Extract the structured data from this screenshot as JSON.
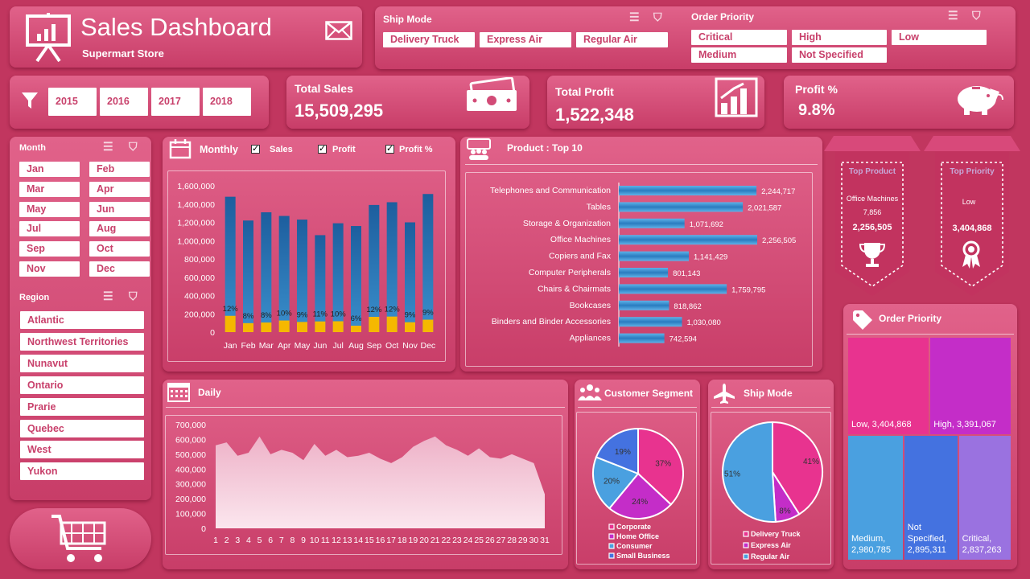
{
  "header": {
    "title": "Sales Dashboard",
    "subtitle": "Supermart Store"
  },
  "ship_mode_filter": {
    "title": "Ship Mode",
    "items": [
      "Delivery Truck",
      "Express Air",
      "Regular Air"
    ]
  },
  "order_priority_filter": {
    "title": "Order Priority",
    "items": [
      "Critical",
      "High",
      "Low",
      "Medium",
      "Not Specified"
    ]
  },
  "years": [
    "2015",
    "2016",
    "2017",
    "2018"
  ],
  "kpis": {
    "sales": {
      "title": "Total Sales",
      "value": "15,509,295"
    },
    "profit": {
      "title": "Total Profit",
      "value": "1,522,348"
    },
    "profit_pct": {
      "title": "Profit %",
      "value": "9.8%"
    }
  },
  "month_filter": {
    "title": "Month",
    "items": [
      "Jan",
      "Feb",
      "Mar",
      "Apr",
      "May",
      "Jun",
      "Jul",
      "Aug",
      "Sep",
      "Oct",
      "Nov",
      "Dec"
    ]
  },
  "region_filter": {
    "title": "Region",
    "items": [
      "Atlantic",
      "Northwest Territories",
      "Nunavut",
      "Ontario",
      "Prarie",
      "Quebec",
      "West",
      "Yukon"
    ]
  },
  "monthly": {
    "title": "Monthly",
    "checks": [
      "Sales",
      "Profit",
      "Profit %"
    ]
  },
  "top_product_title": "Product : Top 10",
  "ribbon_product": {
    "title": "Top Product",
    "name": "Office Machines",
    "sub": "7,856",
    "value": "2,256,505"
  },
  "ribbon_priority": {
    "title": "Top Priority",
    "name": "Low",
    "value": "3,404,868"
  },
  "daily_title": "Daily",
  "segment_title": "Customer Segment",
  "shipmode_title": "Ship Mode",
  "priority_title": "Order Priority",
  "colors": {
    "bar_top": "#3a8fcc",
    "bar_bottom": "#1d5e9e",
    "profit": "#f5b800",
    "pink": "#e8338f",
    "magenta": "#c42dc8",
    "blue": "#4aa0e0",
    "royal": "#4472e0",
    "violet": "#9a72e0"
  },
  "chart_data": [
    {
      "type": "bar",
      "name": "Monthly",
      "categories": [
        "Jan",
        "Feb",
        "Mar",
        "Apr",
        "May",
        "Jun",
        "Jul",
        "Aug",
        "Sep",
        "Oct",
        "Nov",
        "Dec"
      ],
      "series": [
        {
          "name": "Sales",
          "values": [
            1480000,
            1220000,
            1310000,
            1270000,
            1230000,
            1060000,
            1190000,
            1160000,
            1390000,
            1420000,
            1200000,
            1510000
          ]
        },
        {
          "name": "Profit",
          "values": [
            178000,
            98000,
            105000,
            127000,
            111000,
            117000,
            119000,
            70000,
            167000,
            170000,
            108000,
            136000
          ]
        }
      ],
      "labels": [
        "12%",
        "8%",
        "8%",
        "10%",
        "9%",
        "11%",
        "10%",
        "6%",
        "12%",
        "12%",
        "9%",
        "9%"
      ],
      "ylim": [
        0,
        1600000
      ],
      "yticks": [
        "0",
        "200,000",
        "400,000",
        "600,000",
        "800,000",
        "1,000,000",
        "1,200,000",
        "1,400,000",
        "1,600,000"
      ]
    },
    {
      "type": "bar",
      "orientation": "horizontal",
      "name": "Product : Top 10",
      "categories": [
        "Telephones and Communication",
        "Tables",
        "Storage & Organization",
        "Office Machines",
        "Copiers and Fax",
        "Computer Peripherals",
        "Chairs & Chairmats",
        "Bookcases",
        "Binders and Binder Accessories",
        "Appliances"
      ],
      "values": [
        2244717,
        2021587,
        1071692,
        2256505,
        1141429,
        801143,
        1759795,
        818862,
        1030080,
        742594
      ],
      "value_labels": [
        "2,244,717",
        "2,021,587",
        "1,071,692",
        "2,256,505",
        "1,141,429",
        "801,143",
        "1,759,795",
        "818,862",
        "1,030,080",
        "742,594"
      ]
    },
    {
      "type": "area",
      "name": "Daily",
      "x": [
        1,
        2,
        3,
        4,
        5,
        6,
        7,
        8,
        9,
        10,
        11,
        12,
        13,
        14,
        15,
        16,
        17,
        18,
        19,
        20,
        21,
        22,
        23,
        24,
        25,
        26,
        27,
        28,
        29,
        30,
        31
      ],
      "values": [
        560000,
        580000,
        490000,
        510000,
        620000,
        500000,
        530000,
        510000,
        460000,
        570000,
        490000,
        530000,
        480000,
        490000,
        510000,
        470000,
        440000,
        480000,
        550000,
        590000,
        620000,
        560000,
        530000,
        490000,
        540000,
        480000,
        470000,
        500000,
        470000,
        440000,
        230000
      ],
      "ylim": [
        0,
        700000
      ],
      "yticks": [
        "0",
        "100,000",
        "200,000",
        "300,000",
        "400,000",
        "500,000",
        "600,000",
        "700,000"
      ]
    },
    {
      "type": "pie",
      "name": "Customer Segment",
      "labels": [
        "Corporate",
        "Home Office",
        "Consumer",
        "Small Business"
      ],
      "values": [
        37,
        24,
        20,
        19
      ],
      "value_labels": [
        "37%",
        "24%",
        "20%",
        "19%"
      ]
    },
    {
      "type": "pie",
      "name": "Ship Mode",
      "labels": [
        "Delivery Truck",
        "Express Air",
        "Regular Air"
      ],
      "values": [
        41,
        8,
        51
      ],
      "value_labels": [
        "41%",
        "8%",
        "51%"
      ]
    },
    {
      "type": "heatmap",
      "name": "Order Priority",
      "labels": [
        "Low, 3,404,868",
        "High, 3,391,067",
        "Medium, 2,980,785",
        "Not Specified, 2,895,311",
        "Critical, 2,837,263"
      ],
      "values": [
        3404868,
        3391067,
        2980785,
        2895311,
        2837263
      ]
    }
  ]
}
